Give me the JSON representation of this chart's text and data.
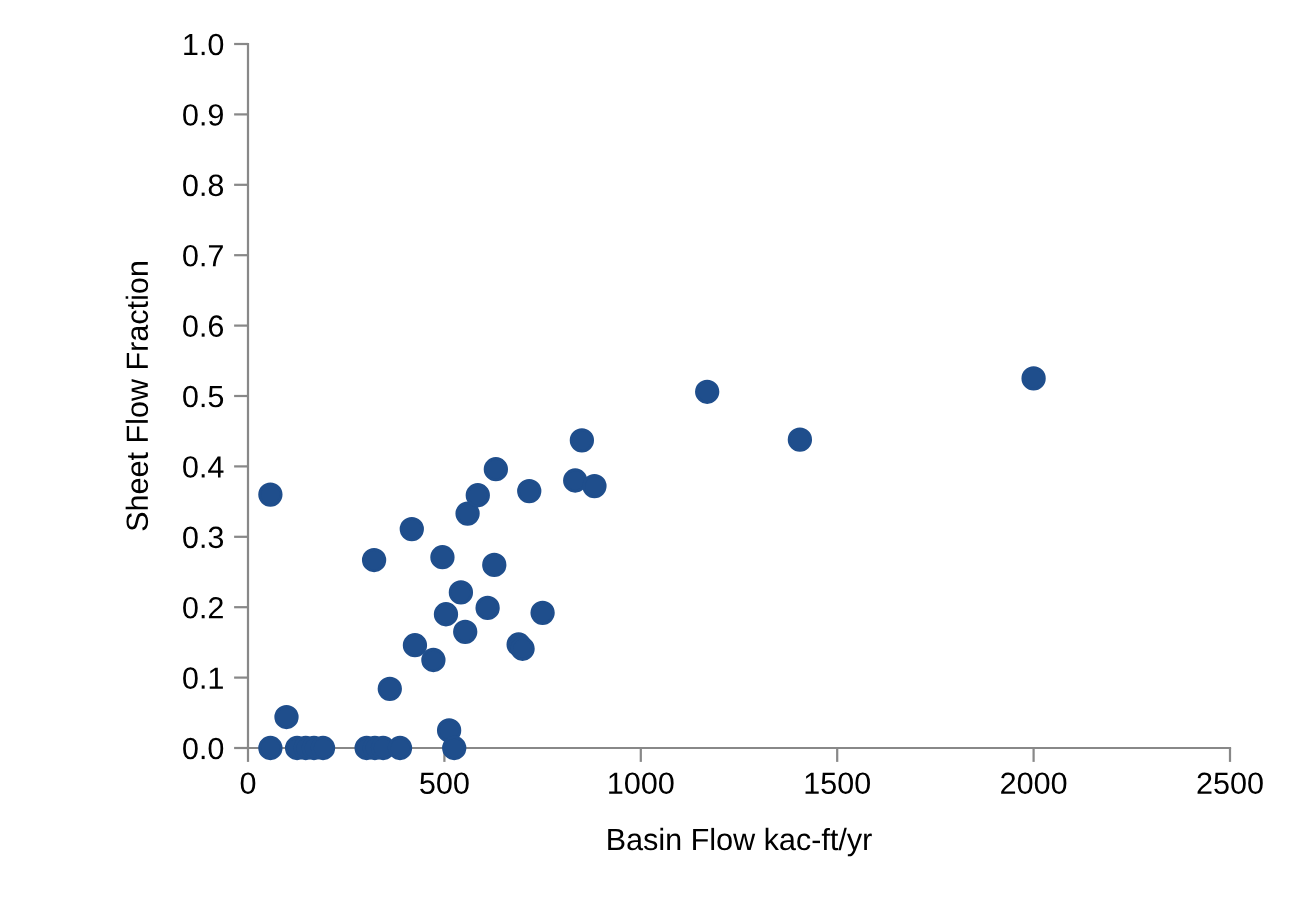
{
  "chart_data": {
    "type": "scatter",
    "xlabel": "Basin Flow kac-ft/yr",
    "ylabel": "Sheet Flow Fraction",
    "x": [
      57,
      57,
      98,
      125,
      147,
      168,
      191,
      302,
      323,
      344,
      387,
      321,
      361,
      417,
      425,
      472,
      495,
      504,
      512,
      525,
      542,
      553,
      559,
      585,
      610,
      627,
      631,
      689,
      699,
      716,
      750,
      833,
      850,
      882,
      1169,
      1405,
      2000
    ],
    "series": [
      {
        "color": "#1f4e8c",
        "values": [
          0,
          0.36,
          0.044,
          0,
          0,
          0,
          0,
          0,
          0,
          0,
          0,
          0.267,
          0.084,
          0.311,
          0.146,
          0.125,
          0.271,
          0.19,
          0.025,
          0,
          0.221,
          0.165,
          0.333,
          0.359,
          0.199,
          0.26,
          0.396,
          0.147,
          0.141,
          0.365,
          0.192,
          0.38,
          0.437,
          0.372,
          0.506,
          0.438,
          0.525
        ]
      }
    ],
    "xlim": [
      0,
      2500
    ],
    "xticks": [
      0,
      500,
      1000,
      1500,
      2000,
      2500
    ],
    "ylim": [
      0,
      1.0
    ],
    "yticks": [
      {
        "value": 0,
        "label": "0.0"
      },
      {
        "value": 0.1,
        "label": "0.1"
      },
      {
        "value": 0.2,
        "label": "0.2"
      },
      {
        "value": 0.3,
        "label": "0.3"
      },
      {
        "value": 0.4,
        "label": "0.4"
      },
      {
        "value": 0.5,
        "label": "0.5"
      },
      {
        "value": 0.6,
        "label": "0.6"
      },
      {
        "value": 0.7,
        "label": "0.7"
      },
      {
        "value": 0.8,
        "label": "0.8"
      },
      {
        "value": 0.9,
        "label": "0.9"
      },
      {
        "value": 1.0,
        "label": "1.0"
      }
    ],
    "marker": "circle",
    "grid": false,
    "legend": false
  }
}
